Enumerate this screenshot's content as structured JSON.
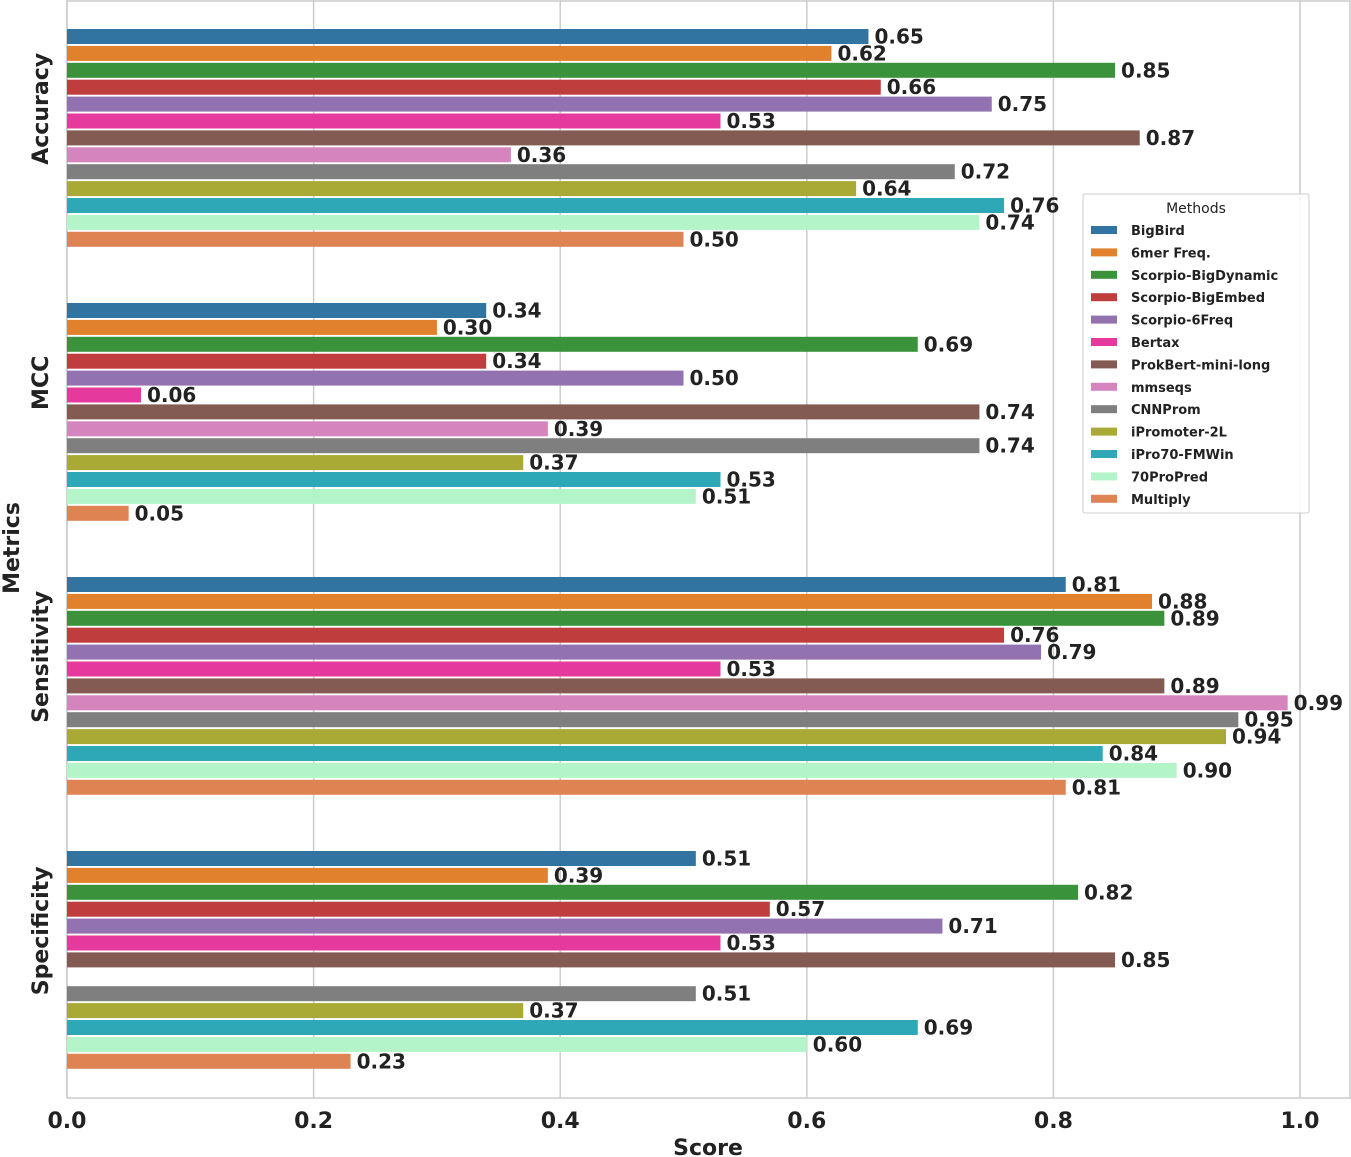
{
  "chart_data": {
    "type": "bar",
    "orientation": "horizontal",
    "xlabel": "Score",
    "ylabel": "Metrics",
    "xlim": [
      0,
      1.04
    ],
    "xticks": [
      "0.0",
      "0.2",
      "0.4",
      "0.6",
      "0.8",
      "1.0"
    ],
    "grid": true,
    "legend_title": "Methods",
    "legend_position": "right",
    "categories": [
      "Accuracy",
      "MCC",
      "Sensitivity",
      "Specificity"
    ],
    "series": [
      {
        "name": "BigBird",
        "color": "#3274a1",
        "values": [
          0.65,
          0.34,
          0.81,
          0.51
        ]
      },
      {
        "name": "6mer Freq.",
        "color": "#e1812c",
        "values": [
          0.62,
          0.3,
          0.88,
          0.39
        ]
      },
      {
        "name": "Scorpio-BigDynamic",
        "color": "#3a923a",
        "values": [
          0.85,
          0.69,
          0.89,
          0.82
        ]
      },
      {
        "name": "Scorpio-BigEmbed",
        "color": "#c03d3e",
        "values": [
          0.66,
          0.34,
          0.76,
          0.57
        ]
      },
      {
        "name": "Scorpio-6Freq",
        "color": "#9372b2",
        "values": [
          0.75,
          0.5,
          0.79,
          0.71
        ]
      },
      {
        "name": "Bertax",
        "color": "#e5399e",
        "values": [
          0.53,
          0.06,
          0.53,
          0.53
        ]
      },
      {
        "name": "ProkBert-mini-long",
        "color": "#845b53",
        "values": [
          0.87,
          0.74,
          0.89,
          0.85
        ]
      },
      {
        "name": "mmseqs",
        "color": "#d684bd",
        "values": [
          0.36,
          0.39,
          0.99,
          null
        ]
      },
      {
        "name": "CNNProm",
        "color": "#7f7f7f",
        "values": [
          0.72,
          0.74,
          0.95,
          0.51
        ]
      },
      {
        "name": "iPromoter-2L",
        "color": "#a9aa35",
        "values": [
          0.64,
          0.37,
          0.94,
          0.37
        ]
      },
      {
        "name": "iPro70-FMWin",
        "color": "#2ea8b7",
        "values": [
          0.76,
          0.53,
          0.84,
          0.69
        ]
      },
      {
        "name": "70ProPred",
        "color": "#b3f5c8",
        "values": [
          0.74,
          0.51,
          0.9,
          0.6
        ]
      },
      {
        "name": "Multiply",
        "color": "#dd8452",
        "values": [
          0.5,
          0.05,
          0.81,
          0.23
        ]
      }
    ],
    "value_labels": [
      [
        "0.65",
        "0.34",
        "0.81",
        "0.51"
      ],
      [
        "0.62",
        "0.30",
        "0.88",
        "0.39"
      ],
      [
        "0.85",
        "0.69",
        "0.89",
        "0.82"
      ],
      [
        "0.66",
        "0.34",
        "0.76",
        "0.57"
      ],
      [
        "0.75",
        "0.50",
        "0.79",
        "0.71"
      ],
      [
        "0.53",
        "0.06",
        "0.53",
        "0.53"
      ],
      [
        "0.87",
        "0.74",
        "0.89",
        "0.85"
      ],
      [
        "0.36",
        "0.39",
        "0.99",
        null
      ],
      [
        "0.72",
        "0.74",
        "0.95",
        "0.51"
      ],
      [
        "0.64",
        "0.37",
        "0.94",
        "0.37"
      ],
      [
        "0.76",
        "0.53",
        "0.84",
        "0.69"
      ],
      [
        "0.74",
        "0.51",
        "0.90",
        "0.60"
      ],
      [
        "0.50",
        "0.05",
        "0.81",
        "0.23"
      ]
    ]
  }
}
